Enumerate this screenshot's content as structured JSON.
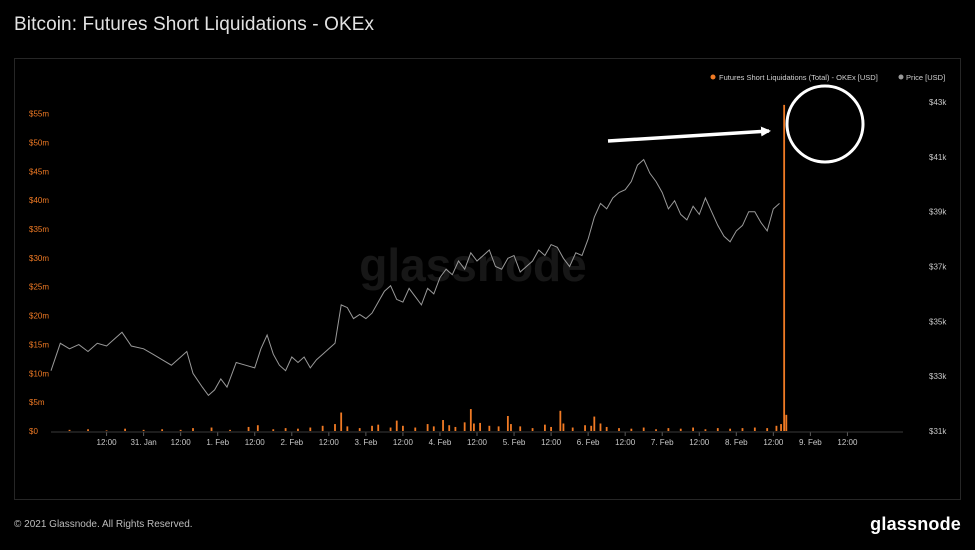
{
  "page": {
    "title": "Bitcoin: Futures Short Liquidations - OKEx",
    "footer": "© 2021 Glassnode. All Rights Reserved.",
    "brand": "glassnode",
    "watermark": "glassnode"
  },
  "colors": {
    "background": "#000000",
    "liquidations": "#f07a24",
    "price": "#9a9a9a",
    "annotation": "#ffffff"
  },
  "chart_data": {
    "type": "bar+line",
    "title": "Bitcoin: Futures Short Liquidations - OKEx",
    "legend_position": "top-right",
    "grid": false,
    "x": {
      "unit": "hours",
      "range": [
        -18,
        258
      ],
      "ticks": [
        {
          "t": 0,
          "label": "12:00"
        },
        {
          "t": 12,
          "label": "31. Jan"
        },
        {
          "t": 24,
          "label": "12:00"
        },
        {
          "t": 36,
          "label": "1. Feb"
        },
        {
          "t": 48,
          "label": "12:00"
        },
        {
          "t": 60,
          "label": "2. Feb"
        },
        {
          "t": 72,
          "label": "12:00"
        },
        {
          "t": 84,
          "label": "3. Feb"
        },
        {
          "t": 96,
          "label": "12:00"
        },
        {
          "t": 108,
          "label": "4. Feb"
        },
        {
          "t": 120,
          "label": "12:00"
        },
        {
          "t": 132,
          "label": "5. Feb"
        },
        {
          "t": 144,
          "label": "12:00"
        },
        {
          "t": 156,
          "label": "6. Feb"
        },
        {
          "t": 168,
          "label": "12:00"
        },
        {
          "t": 180,
          "label": "7. Feb"
        },
        {
          "t": 192,
          "label": "12:00"
        },
        {
          "t": 204,
          "label": "8. Feb"
        },
        {
          "t": 216,
          "label": "12:00"
        },
        {
          "t": 228,
          "label": "9. Feb"
        },
        {
          "t": 240,
          "label": "12:00"
        }
      ]
    },
    "y_left": {
      "range": [
        0,
        57
      ],
      "ticks": [
        {
          "v": 0,
          "label": "$0"
        },
        {
          "v": 5,
          "label": "$5m"
        },
        {
          "v": 10,
          "label": "$10m"
        },
        {
          "v": 15,
          "label": "$15m"
        },
        {
          "v": 20,
          "label": "$20m"
        },
        {
          "v": 25,
          "label": "$25m"
        },
        {
          "v": 30,
          "label": "$30m"
        },
        {
          "v": 35,
          "label": "$35m"
        },
        {
          "v": 40,
          "label": "$40m"
        },
        {
          "v": 45,
          "label": "$45m"
        },
        {
          "v": 50,
          "label": "$50m"
        },
        {
          "v": 55,
          "label": "$55m"
        }
      ]
    },
    "y_right": {
      "range": [
        31000,
        43000
      ],
      "ticks": [
        {
          "v": 31000,
          "label": "$31k"
        },
        {
          "v": 33000,
          "label": "$33k"
        },
        {
          "v": 35000,
          "label": "$35k"
        },
        {
          "v": 37000,
          "label": "$37k"
        },
        {
          "v": 39000,
          "label": "$39k"
        },
        {
          "v": 41000,
          "label": "$41k"
        },
        {
          "v": 43000,
          "label": "$43k"
        }
      ]
    },
    "series": [
      {
        "name": "Futures Short Liquidations (Total) - OKEx [USD]",
        "type": "bar",
        "axis": "left",
        "color": "#f07a24",
        "points": [
          [
            -12,
            0.2
          ],
          [
            -6,
            0.3
          ],
          [
            0,
            0.1
          ],
          [
            6,
            0.4
          ],
          [
            12,
            0.2
          ],
          [
            18,
            0.3
          ],
          [
            24,
            0.2
          ],
          [
            28,
            0.5
          ],
          [
            34,
            0.6
          ],
          [
            40,
            0.2
          ],
          [
            46,
            0.7
          ],
          [
            49,
            1.0
          ],
          [
            54,
            0.3
          ],
          [
            58,
            0.5
          ],
          [
            62,
            0.4
          ],
          [
            66,
            0.6
          ],
          [
            70,
            0.9
          ],
          [
            74,
            1.2
          ],
          [
            76,
            3.2
          ],
          [
            78,
            0.8
          ],
          [
            82,
            0.5
          ],
          [
            86,
            0.9
          ],
          [
            88,
            1.1
          ],
          [
            92,
            0.6
          ],
          [
            94,
            1.8
          ],
          [
            96,
            0.9
          ],
          [
            100,
            0.6
          ],
          [
            104,
            1.2
          ],
          [
            106,
            0.8
          ],
          [
            109,
            1.9
          ],
          [
            111,
            1.0
          ],
          [
            113,
            0.7
          ],
          [
            116,
            1.5
          ],
          [
            118,
            3.8
          ],
          [
            119,
            1.3
          ],
          [
            121,
            1.4
          ],
          [
            124,
            0.9
          ],
          [
            127,
            0.8
          ],
          [
            130,
            2.6
          ],
          [
            131,
            1.2
          ],
          [
            134,
            0.8
          ],
          [
            138,
            0.5
          ],
          [
            142,
            1.1
          ],
          [
            144,
            0.7
          ],
          [
            147,
            3.5
          ],
          [
            148,
            1.3
          ],
          [
            151,
            0.6
          ],
          [
            155,
            1.0
          ],
          [
            157,
            0.9
          ],
          [
            158,
            2.5
          ],
          [
            160,
            1.3
          ],
          [
            162,
            0.7
          ],
          [
            166,
            0.5
          ],
          [
            170,
            0.4
          ],
          [
            174,
            0.6
          ],
          [
            178,
            0.3
          ],
          [
            182,
            0.5
          ],
          [
            186,
            0.4
          ],
          [
            190,
            0.6
          ],
          [
            194,
            0.3
          ],
          [
            198,
            0.5
          ],
          [
            202,
            0.4
          ],
          [
            206,
            0.5
          ],
          [
            210,
            0.6
          ],
          [
            214,
            0.5
          ],
          [
            217,
            0.9
          ],
          [
            218.5,
            1.2
          ],
          [
            219.5,
            56.5
          ],
          [
            220.2,
            2.8
          ]
        ]
      },
      {
        "name": "Price [USD]",
        "type": "line",
        "axis": "right",
        "color": "#9a9a9a",
        "points": [
          [
            -18,
            33200
          ],
          [
            -15,
            34200
          ],
          [
            -12,
            34000
          ],
          [
            -9,
            34150
          ],
          [
            -6,
            33900
          ],
          [
            -3,
            34200
          ],
          [
            0,
            34100
          ],
          [
            3,
            34400
          ],
          [
            5,
            34600
          ],
          [
            8,
            34100
          ],
          [
            12,
            34000
          ],
          [
            15,
            33800
          ],
          [
            18,
            33600
          ],
          [
            21,
            33400
          ],
          [
            24,
            33700
          ],
          [
            26,
            33900
          ],
          [
            28,
            33100
          ],
          [
            31,
            32600
          ],
          [
            33,
            32300
          ],
          [
            35,
            32500
          ],
          [
            37,
            32900
          ],
          [
            39,
            32600
          ],
          [
            42,
            33500
          ],
          [
            45,
            33400
          ],
          [
            48,
            33300
          ],
          [
            50,
            34000
          ],
          [
            52,
            34500
          ],
          [
            54,
            33800
          ],
          [
            56,
            33400
          ],
          [
            58,
            33200
          ],
          [
            60,
            33700
          ],
          [
            62,
            33500
          ],
          [
            64,
            33700
          ],
          [
            66,
            33300
          ],
          [
            68,
            33600
          ],
          [
            70,
            33800
          ],
          [
            72,
            34000
          ],
          [
            74,
            34200
          ],
          [
            76,
            35600
          ],
          [
            78,
            35500
          ],
          [
            80,
            35100
          ],
          [
            82,
            35250
          ],
          [
            84,
            35100
          ],
          [
            86,
            35300
          ],
          [
            88,
            35700
          ],
          [
            90,
            36100
          ],
          [
            92,
            36300
          ],
          [
            94,
            35800
          ],
          [
            96,
            35700
          ],
          [
            98,
            36200
          ],
          [
            100,
            35900
          ],
          [
            102,
            35600
          ],
          [
            104,
            36200
          ],
          [
            106,
            36000
          ],
          [
            108,
            36600
          ],
          [
            110,
            36900
          ],
          [
            112,
            36700
          ],
          [
            114,
            37200
          ],
          [
            116,
            36900
          ],
          [
            118,
            37500
          ],
          [
            120,
            37200
          ],
          [
            122,
            37400
          ],
          [
            124,
            37600
          ],
          [
            126,
            37000
          ],
          [
            128,
            36900
          ],
          [
            130,
            37300
          ],
          [
            132,
            37400
          ],
          [
            134,
            36800
          ],
          [
            136,
            37000
          ],
          [
            138,
            37200
          ],
          [
            140,
            37600
          ],
          [
            142,
            37400
          ],
          [
            144,
            37800
          ],
          [
            146,
            37700
          ],
          [
            148,
            37300
          ],
          [
            150,
            37000
          ],
          [
            152,
            37500
          ],
          [
            154,
            37400
          ],
          [
            156,
            38000
          ],
          [
            158,
            38800
          ],
          [
            160,
            39300
          ],
          [
            162,
            39100
          ],
          [
            164,
            39500
          ],
          [
            166,
            39700
          ],
          [
            168,
            39800
          ],
          [
            170,
            40100
          ],
          [
            172,
            40700
          ],
          [
            174,
            40900
          ],
          [
            176,
            40400
          ],
          [
            178,
            40100
          ],
          [
            180,
            39700
          ],
          [
            182,
            39100
          ],
          [
            184,
            39400
          ],
          [
            186,
            38900
          ],
          [
            188,
            38700
          ],
          [
            190,
            39200
          ],
          [
            192,
            38900
          ],
          [
            194,
            39500
          ],
          [
            196,
            39000
          ],
          [
            198,
            38500
          ],
          [
            200,
            38100
          ],
          [
            202,
            37900
          ],
          [
            204,
            38300
          ],
          [
            206,
            38500
          ],
          [
            208,
            39000
          ],
          [
            210,
            39000
          ],
          [
            212,
            38600
          ],
          [
            214,
            38300
          ],
          [
            216,
            39100
          ],
          [
            218,
            39300
          ]
        ]
      }
    ]
  }
}
